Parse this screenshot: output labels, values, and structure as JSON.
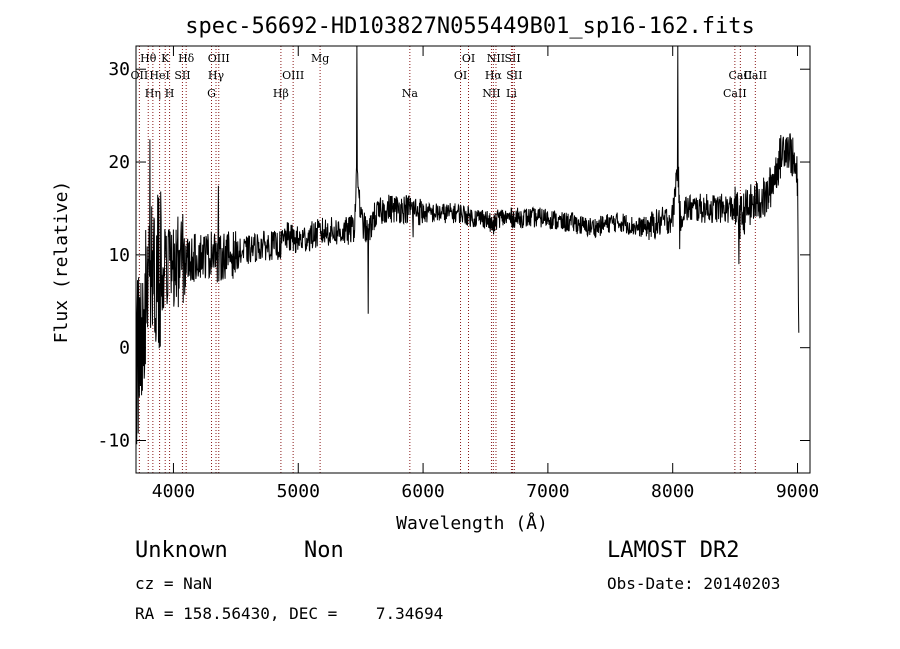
{
  "chart_data": {
    "type": "line",
    "title": "spec-56692-HD103827N055449B01_sp16-162.fits",
    "xlabel": "Wavelength (Å)",
    "ylabel": "Flux (relative)",
    "xlim": [
      3700,
      9100
    ],
    "ylim": [
      -13.5,
      32.5
    ],
    "xticks": [
      4000,
      5000,
      6000,
      7000,
      8000,
      9000
    ],
    "yticks": [
      -10,
      0,
      10,
      20,
      30
    ],
    "grid": false,
    "line_color": "#000000",
    "marker_color": "#8b1a1a",
    "spectrum_anchors": {
      "x": [
        3700,
        3730,
        3760,
        3800,
        3850,
        3900,
        3950,
        4000,
        4050,
        4100,
        4150,
        4200,
        4250,
        4300,
        4330,
        4350,
        4400,
        4500,
        4600,
        4700,
        4800,
        4860,
        4900,
        5000,
        5100,
        5200,
        5300,
        5400,
        5450,
        5470,
        5500,
        5560,
        5600,
        5700,
        5800,
        5900,
        5920,
        6000,
        6100,
        6200,
        6300,
        6400,
        6500,
        6560,
        6600,
        6700,
        6800,
        6900,
        7000,
        7100,
        7200,
        7300,
        7400,
        7500,
        7600,
        7700,
        7800,
        7900,
        8000,
        8040,
        8060,
        8100,
        8200,
        8300,
        8400,
        8500,
        8540,
        8600,
        8700,
        8750,
        8800,
        8850,
        8900,
        8950,
        9000,
        9010
      ],
      "y": [
        -3,
        1,
        5,
        7,
        8,
        9,
        8.5,
        8.5,
        9.5,
        9.5,
        9.5,
        10,
        10,
        10,
        11.5,
        9,
        10,
        10,
        10.5,
        11,
        11,
        11,
        12,
        11.5,
        12,
        12.5,
        12.5,
        12.5,
        13,
        20,
        14,
        12,
        14,
        15,
        15,
        15,
        15,
        14.5,
        14.5,
        14.5,
        14.5,
        14,
        14,
        13,
        14,
        14,
        14,
        14,
        14,
        13.5,
        13.5,
        13,
        13,
        13.5,
        13.5,
        13,
        13,
        13.5,
        14,
        20,
        14,
        15,
        15,
        15,
        15,
        15,
        14,
        15,
        16,
        16,
        18,
        20,
        22,
        21,
        18,
        0
      ]
    },
    "lines": [
      {
        "label": "Hθ",
        "x": 3798,
        "row": 1
      },
      {
        "label": "OII",
        "x": 3727,
        "row": 2
      },
      {
        "label": "Hη",
        "x": 3835,
        "row": 3
      },
      {
        "label": "HeI",
        "x": 3889,
        "row": 2
      },
      {
        "label": "K",
        "x": 3934,
        "row": 1
      },
      {
        "label": "H",
        "x": 3969,
        "row": 3
      },
      {
        "label": "SII",
        "x": 4072,
        "row": 2
      },
      {
        "label": "Hδ",
        "x": 4102,
        "row": 1
      },
      {
        "label": "G",
        "x": 4305,
        "row": 3
      },
      {
        "label": "Hγ",
        "x": 4341,
        "row": 2
      },
      {
        "label": "OIII",
        "x": 4363,
        "row": 1
      },
      {
        "label": "Hβ",
        "x": 4861,
        "row": 3
      },
      {
        "label": "OIII",
        "x": 4959,
        "row": 2
      },
      {
        "label": "Mg",
        "x": 5175,
        "row": 1
      },
      {
        "label": "Na",
        "x": 5894,
        "row": 3
      },
      {
        "label": "OI",
        "x": 6300,
        "row": 2
      },
      {
        "label": "OI",
        "x": 6364,
        "row": 1
      },
      {
        "label": "NII",
        "x": 6548,
        "row": 3
      },
      {
        "label": "Hα",
        "x": 6563,
        "row": 2
      },
      {
        "label": "NII",
        "x": 6584,
        "row": 1
      },
      {
        "label": "SII",
        "x": 6717,
        "row": 1
      },
      {
        "label": "Li",
        "x": 6708,
        "row": 3
      },
      {
        "label": "SII",
        "x": 6731,
        "row": 2
      },
      {
        "label": "CaII",
        "x": 8498,
        "row": 3
      },
      {
        "label": "CaII",
        "x": 8542,
        "row": 2
      },
      {
        "label": "CaII",
        "x": 8662,
        "row": 2
      }
    ]
  },
  "footer": {
    "object": "Unknown",
    "class": "Non",
    "survey": "LAMOST DR2",
    "cz": "cz = NaN",
    "obs_date": "Obs-Date: 20140203",
    "radec": "RA = 158.56430, DEC =    7.34694"
  }
}
